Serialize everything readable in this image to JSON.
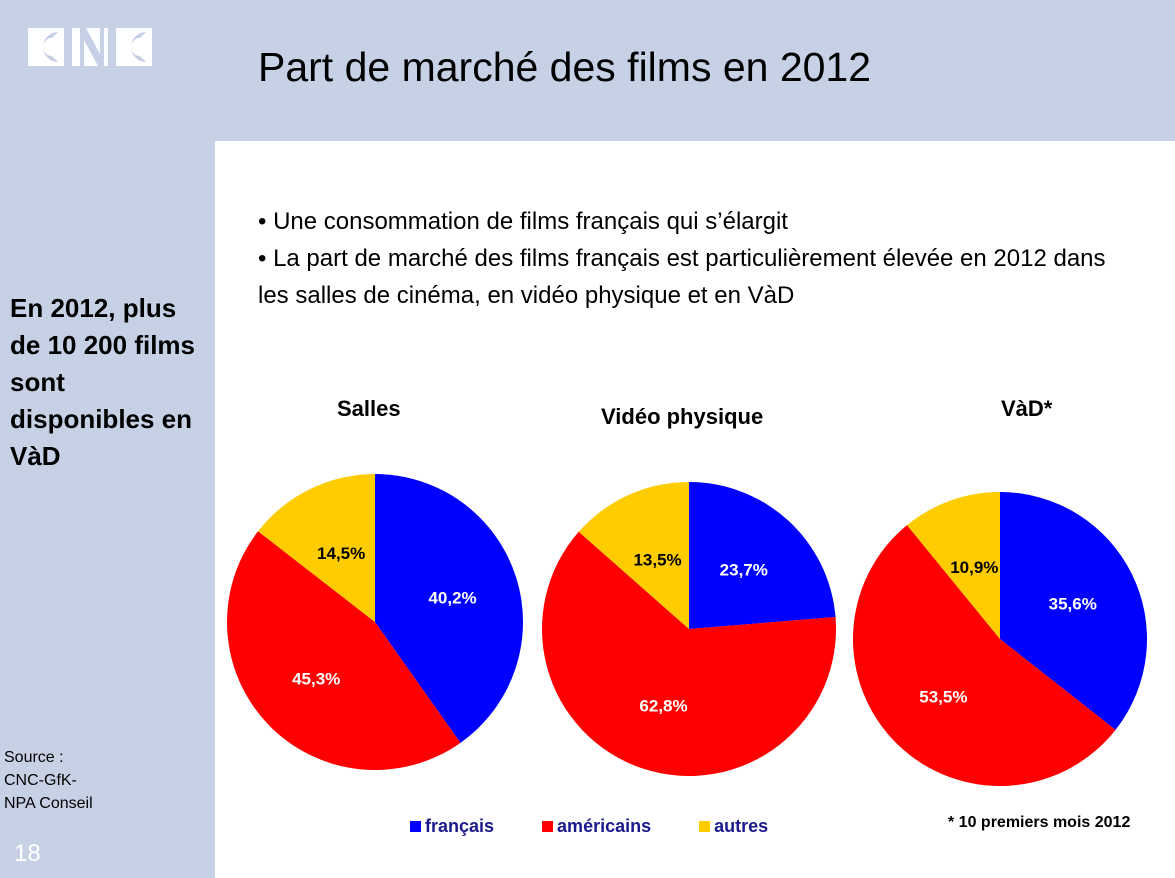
{
  "header": {
    "logo": "CNC",
    "title": "Part de marché des films en 2012"
  },
  "bullets": [
    "• Une consommation de films français qui s’élargit",
    "• La part de marché des films français est particulièrement élevée en 2012 dans les salles de cinéma, en vidéo physique et en VàD"
  ],
  "sidebar": {
    "highlight": "En 2012, plus de 10 200 films sont disponibles en VàD",
    "source_lines": [
      "Source :",
      "CNC-GfK-",
      "NPA Conseil"
    ],
    "page_number": "18"
  },
  "legend": {
    "items": [
      {
        "label": "français",
        "color": "#0000ff"
      },
      {
        "label": "américains",
        "color": "#ff0000"
      },
      {
        "label": "autres",
        "color": "#ffcc00"
      }
    ]
  },
  "footnote": "* 10 premiers mois 2012",
  "chart_data": [
    {
      "type": "pie",
      "title": "Salles",
      "categories": [
        "français",
        "américains",
        "autres"
      ],
      "values": [
        40.2,
        45.3,
        14.5
      ],
      "labels": [
        "40,2%",
        "45,3%",
        "14,5%"
      ],
      "colors": [
        "#0000ff",
        "#ff0000",
        "#ffcc00"
      ]
    },
    {
      "type": "pie",
      "title": "Vidéo physique",
      "categories": [
        "français",
        "américains",
        "autres"
      ],
      "values": [
        23.7,
        62.8,
        13.5
      ],
      "labels": [
        "23,7%",
        "62,8%",
        "13,5%"
      ],
      "colors": [
        "#0000ff",
        "#ff0000",
        "#ffcc00"
      ]
    },
    {
      "type": "pie",
      "title": "VàD*",
      "categories": [
        "français",
        "américains",
        "autres"
      ],
      "values": [
        35.6,
        53.5,
        10.9
      ],
      "labels": [
        "35,6%",
        "53,5%",
        "10,9%"
      ],
      "colors": [
        "#0000ff",
        "#ff0000",
        "#ffcc00"
      ]
    }
  ]
}
